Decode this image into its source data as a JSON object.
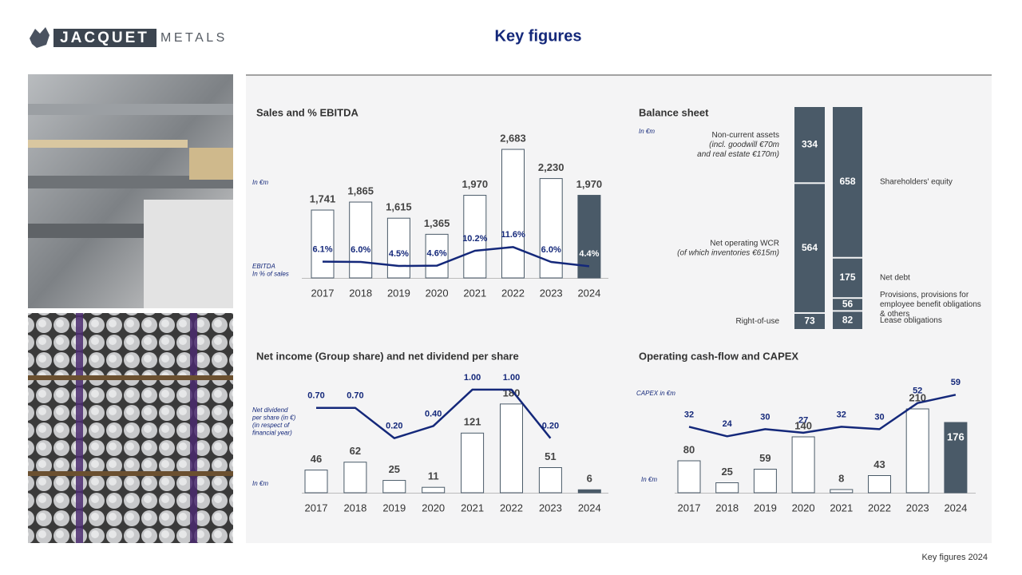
{
  "header": {
    "title": "Key figures"
  },
  "logo": {
    "name": "JACQUET",
    "suffix": "METALS"
  },
  "footer": "Key figures 2024",
  "chart_data": [
    {
      "type": "combo",
      "title": "Sales and % EBITDA",
      "unit_label": "In €m",
      "line_label": [
        "EBITDA",
        "In % of sales"
      ],
      "categories": [
        "2017",
        "2018",
        "2019",
        "2020",
        "2021",
        "2022",
        "2023",
        "2024"
      ],
      "series": [
        {
          "values": [
            1741,
            1865,
            1615,
            1365,
            1970,
            2683,
            2230,
            1970
          ],
          "value_labels": [
            "1,741",
            "1,865",
            "1,615",
            "1,365",
            "1,970",
            "2,683",
            "2,230",
            "1,970"
          ],
          "color": "#ffffff",
          "outline": "#4a5a68",
          "highlight_color": "#4a5a68"
        },
        {
          "values": [
            6.1,
            6.0,
            4.5,
            4.6,
            10.2,
            11.6,
            6.0,
            4.4
          ],
          "value_labels": [
            "6.1%",
            "6.0%",
            "4.5%",
            "4.6%",
            "10.2%",
            "11.6%",
            "6.0%",
            "4.4%"
          ],
          "color": "#14287a",
          "axis": "y2"
        }
      ],
      "highlight_last": true,
      "ylim": [
        688,
        2894
      ],
      "y2lim": [
        0,
        53.4
      ]
    },
    {
      "type": "balance",
      "title": "Balance sheet",
      "unit_label": "In €m",
      "color": "#4a5a68",
      "columns": [
        {
          "segments": [
            {
              "value": 334,
              "label": [
                "Non-current assets",
                "(incl. goodwill €70m",
                "and real estate €170m)"
              ]
            },
            {
              "value": 564,
              "label": [
                "Net operating WCR",
                "(of which inventories €615m)"
              ]
            },
            {
              "value": 73,
              "label": [
                "Right-of-use"
              ]
            }
          ]
        },
        {
          "segments": [
            {
              "value": 658,
              "label": [
                "Shareholders' equity"
              ]
            },
            {
              "value": 175,
              "label": [
                "Net debt"
              ]
            },
            {
              "value": 56,
              "label": [
                "Provisions, provisions for",
                "employee benefit obligations",
                "& others"
              ]
            },
            {
              "value": 82,
              "label": [
                "Lease obligations"
              ]
            }
          ]
        }
      ]
    },
    {
      "type": "combo",
      "title": "Net income (Group share) and net dividend per share",
      "unit_label": "In €m",
      "line_label": [
        "Net dividend",
        "per share (in €)",
        "(in respect of",
        "financial year)"
      ],
      "categories": [
        "2017",
        "2018",
        "2019",
        "2020",
        "2021",
        "2022",
        "2023",
        "2024"
      ],
      "series": [
        {
          "values": [
            46,
            62,
            25,
            11,
            121,
            180,
            51,
            6
          ],
          "color": "#ffffff",
          "outline": "#4a5a68",
          "highlight_color": "#4a5a68"
        },
        {
          "values": [
            0.7,
            0.7,
            0.2,
            0.4,
            1.0,
            1.0,
            0.2,
            null
          ],
          "value_labels": [
            "0.70",
            "0.70",
            "0.20",
            "0.40",
            "1.00",
            "1.00",
            "0.20",
            null
          ],
          "color": "#14287a",
          "axis": "y2"
        }
      ],
      "highlight_last": true,
      "ylim": [
        0,
        230
      ],
      "y2lim": [
        -0.7,
        1.17
      ]
    },
    {
      "type": "combo",
      "title": "Operating cash-flow and CAPEX",
      "unit_label": "In €m",
      "line_label": [
        "CAPEX in €m"
      ],
      "categories": [
        "2017",
        "2018",
        "2019",
        "2020",
        "2021",
        "2022",
        "2023",
        "2024"
      ],
      "series": [
        {
          "values": [
            80,
            25,
            59,
            140,
            8,
            43,
            210,
            176
          ],
          "color": "#ffffff",
          "outline": "#4a5a68",
          "highlight_color": "#4a5a68"
        },
        {
          "values": [
            32,
            24,
            30,
            27,
            32,
            30,
            52,
            59
          ],
          "color": "#14287a",
          "axis": "y2"
        }
      ],
      "highlight_last": true,
      "last_label_inside": true,
      "ylim": [
        0,
        284
      ],
      "y2lim": [
        -23.6,
        72
      ]
    }
  ]
}
